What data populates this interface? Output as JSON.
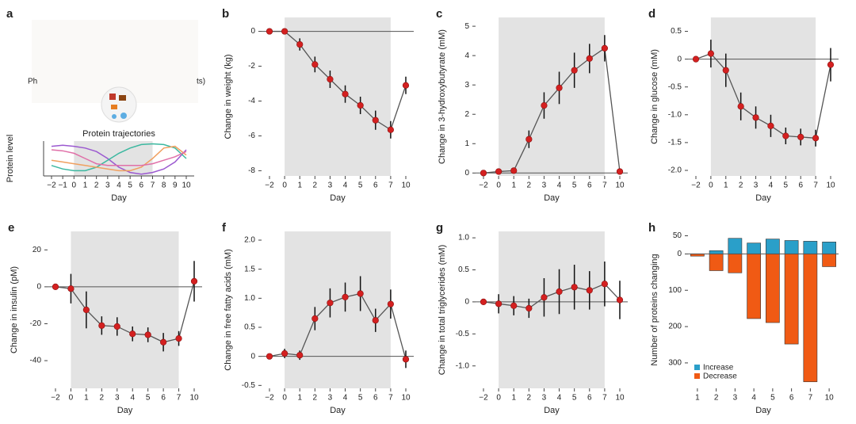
{
  "chart_data": [
    {
      "type": "trajectory",
      "label": "a",
      "title": "Protein trajectories",
      "ylabel": "Protein level",
      "xlabel": "Day",
      "annotations": [
        "Ph",
        "ts)"
      ],
      "categories": [
        "−2",
        "−1",
        "0",
        "1",
        "2",
        "3",
        "4",
        "5",
        "6",
        "7",
        "8",
        "9",
        "10"
      ],
      "shade": [
        "0",
        "7"
      ],
      "ylim": [
        0,
        1
      ],
      "series": [
        {
          "color": "#9b59d0",
          "values": [
            0.85,
            0.88,
            0.85,
            0.8,
            0.7,
            0.5,
            0.25,
            0.1,
            0.05,
            0.1,
            0.2,
            0.4,
            0.75
          ]
        },
        {
          "color": "#3cb8a0",
          "values": [
            0.3,
            0.2,
            0.15,
            0.15,
            0.25,
            0.45,
            0.65,
            0.8,
            0.9,
            0.92,
            0.9,
            0.8,
            0.5
          ]
        },
        {
          "color": "#f0a060",
          "values": [
            0.45,
            0.4,
            0.35,
            0.3,
            0.25,
            0.2,
            0.15,
            0.15,
            0.25,
            0.5,
            0.8,
            0.85,
            0.6
          ]
        },
        {
          "color": "#e070a8",
          "values": [
            0.75,
            0.72,
            0.65,
            0.5,
            0.35,
            0.3,
            0.3,
            0.3,
            0.3,
            0.35,
            0.45,
            0.55,
            0.7
          ]
        }
      ]
    },
    {
      "type": "line",
      "label": "b",
      "ylabel": "Change in weight (kg)",
      "xlabel": "Day",
      "categories": [
        "−2",
        "0",
        "1",
        "2",
        "3",
        "4",
        "5",
        "6",
        "7",
        "10"
      ],
      "shade": [
        "0",
        "7"
      ],
      "values": [
        0,
        0,
        -0.75,
        -1.9,
        -2.75,
        -3.6,
        -4.25,
        -5.1,
        -5.65,
        -3.1
      ],
      "errors": [
        0,
        0,
        0.35,
        0.45,
        0.5,
        0.5,
        0.5,
        0.55,
        0.5,
        0.5
      ],
      "ylim": [
        -8.3,
        0.8
      ],
      "yticks": [
        0,
        -2,
        -4,
        -6,
        -8
      ],
      "color": "#d42020"
    },
    {
      "type": "line",
      "label": "c",
      "ylabel": "Change in 3-hydroxybutyrate (mM)",
      "xlabel": "Day",
      "categories": [
        "−2",
        "0",
        "1",
        "2",
        "3",
        "4",
        "5",
        "6",
        "7",
        "10"
      ],
      "shade": [
        "0",
        "7"
      ],
      "values": [
        0,
        0.05,
        0.08,
        1.15,
        2.3,
        2.9,
        3.5,
        3.9,
        4.25,
        0.05
      ],
      "errors": [
        0,
        0.1,
        0.1,
        0.3,
        0.45,
        0.55,
        0.6,
        0.5,
        0.45,
        0.05
      ],
      "ylim": [
        -0.1,
        5.3
      ],
      "yticks": [
        0,
        1,
        2,
        3,
        4,
        5
      ],
      "color": "#d42020"
    },
    {
      "type": "line",
      "label": "d",
      "ylabel": "Change in glucose (mM)",
      "xlabel": "Day",
      "categories": [
        "−2",
        "0",
        "1",
        "2",
        "3",
        "4",
        "5",
        "6",
        "7",
        "10"
      ],
      "shade": [
        "0",
        "7"
      ],
      "values": [
        0,
        0.1,
        -0.2,
        -0.85,
        -1.05,
        -1.2,
        -1.38,
        -1.4,
        -1.42,
        -0.1
      ],
      "errors": [
        0,
        0.25,
        0.3,
        0.25,
        0.2,
        0.2,
        0.15,
        0.15,
        0.15,
        0.3
      ],
      "ylim": [
        -2.1,
        0.75
      ],
      "yticks": [
        0.5,
        0,
        -0.5,
        {
          "value": -1,
          "label": "-1.0"
        },
        {
          "value": -1.5,
          "label": "-1.5"
        },
        {
          "value": -2,
          "label": "-2.0"
        }
      ],
      "color": "#d42020"
    },
    {
      "type": "line",
      "label": "e",
      "ylabel": "Change in insulin (pM)",
      "xlabel": "Day",
      "categories": [
        "−2",
        "0",
        "1",
        "2",
        "3",
        "4",
        "5",
        "6",
        "7",
        "10"
      ],
      "shade": [
        "0",
        "7"
      ],
      "values": [
        0,
        -1,
        -12.5,
        -21,
        -21.5,
        -25.5,
        -26,
        -30,
        -28,
        3
      ],
      "errors": [
        0,
        8,
        10,
        5,
        5,
        4,
        4,
        5,
        4,
        11
      ],
      "ylim": [
        -55,
        30
      ],
      "yticks": [
        20,
        0,
        -20,
        -40
      ],
      "color": "#d42020"
    },
    {
      "type": "line",
      "label": "f",
      "ylabel": "Change in free fatty acids (mM)",
      "xlabel": "Day",
      "categories": [
        "−2",
        "0",
        "1",
        "2",
        "3",
        "4",
        "5",
        "6",
        "7",
        "10"
      ],
      "shade": [
        "0",
        "7"
      ],
      "values": [
        0,
        0.05,
        0.02,
        0.65,
        0.92,
        1.02,
        1.08,
        0.62,
        0.9,
        -0.05
      ],
      "errors": [
        0,
        0.08,
        0.08,
        0.2,
        0.25,
        0.25,
        0.3,
        0.2,
        0.25,
        0.15
      ],
      "ylim": [
        -0.55,
        2.15
      ],
      "yticks": [
        -0.5,
        0,
        0.5,
        {
          "value": 1,
          "label": "1.0"
        },
        1.5,
        {
          "value": 2,
          "label": "2.0"
        }
      ],
      "color": "#d42020"
    },
    {
      "type": "line",
      "label": "g",
      "ylabel": "Change in total triglycerides (mM)",
      "xlabel": "Day",
      "categories": [
        "−2",
        "0",
        "1",
        "2",
        "3",
        "4",
        "5",
        "6",
        "7",
        "10"
      ],
      "shade": [
        "0",
        "7"
      ],
      "values": [
        0,
        -0.03,
        -0.06,
        -0.1,
        0.07,
        0.16,
        0.23,
        0.18,
        0.28,
        0.03
      ],
      "errors": [
        0,
        0.15,
        0.15,
        0.15,
        0.3,
        0.35,
        0.35,
        0.3,
        0.35,
        0.3
      ],
      "ylim": [
        -1.35,
        1.1
      ],
      "yticks": [
        {
          "value": -1,
          "label": "-1.0"
        },
        -0.5,
        0,
        0.5,
        {
          "value": 1,
          "label": "1.0"
        }
      ],
      "color": "#d42020"
    },
    {
      "type": "bar",
      "label": "h",
      "ylabel": "Number of proteins changing",
      "xlabel": "Day",
      "categories": [
        "1",
        "2",
        "3",
        "4",
        "5",
        "6",
        "7",
        "10"
      ],
      "series": [
        {
          "name": "Increase",
          "color": "#2a9fc9",
          "values": [
            0,
            9,
            43,
            30,
            41,
            37,
            35,
            33
          ]
        },
        {
          "name": "Decrease",
          "color": "#f05a14",
          "values": [
            -6,
            -46,
            -52,
            -178,
            -189,
            -248,
            -352,
            -35
          ]
        }
      ],
      "ylim": [
        -370,
        62
      ],
      "yticks": [
        50,
        0,
        {
          "value": -100,
          "label": "100"
        },
        {
          "value": -200,
          "label": "200"
        },
        {
          "value": -300,
          "label": "300"
        }
      ],
      "legend": "lower left"
    }
  ]
}
